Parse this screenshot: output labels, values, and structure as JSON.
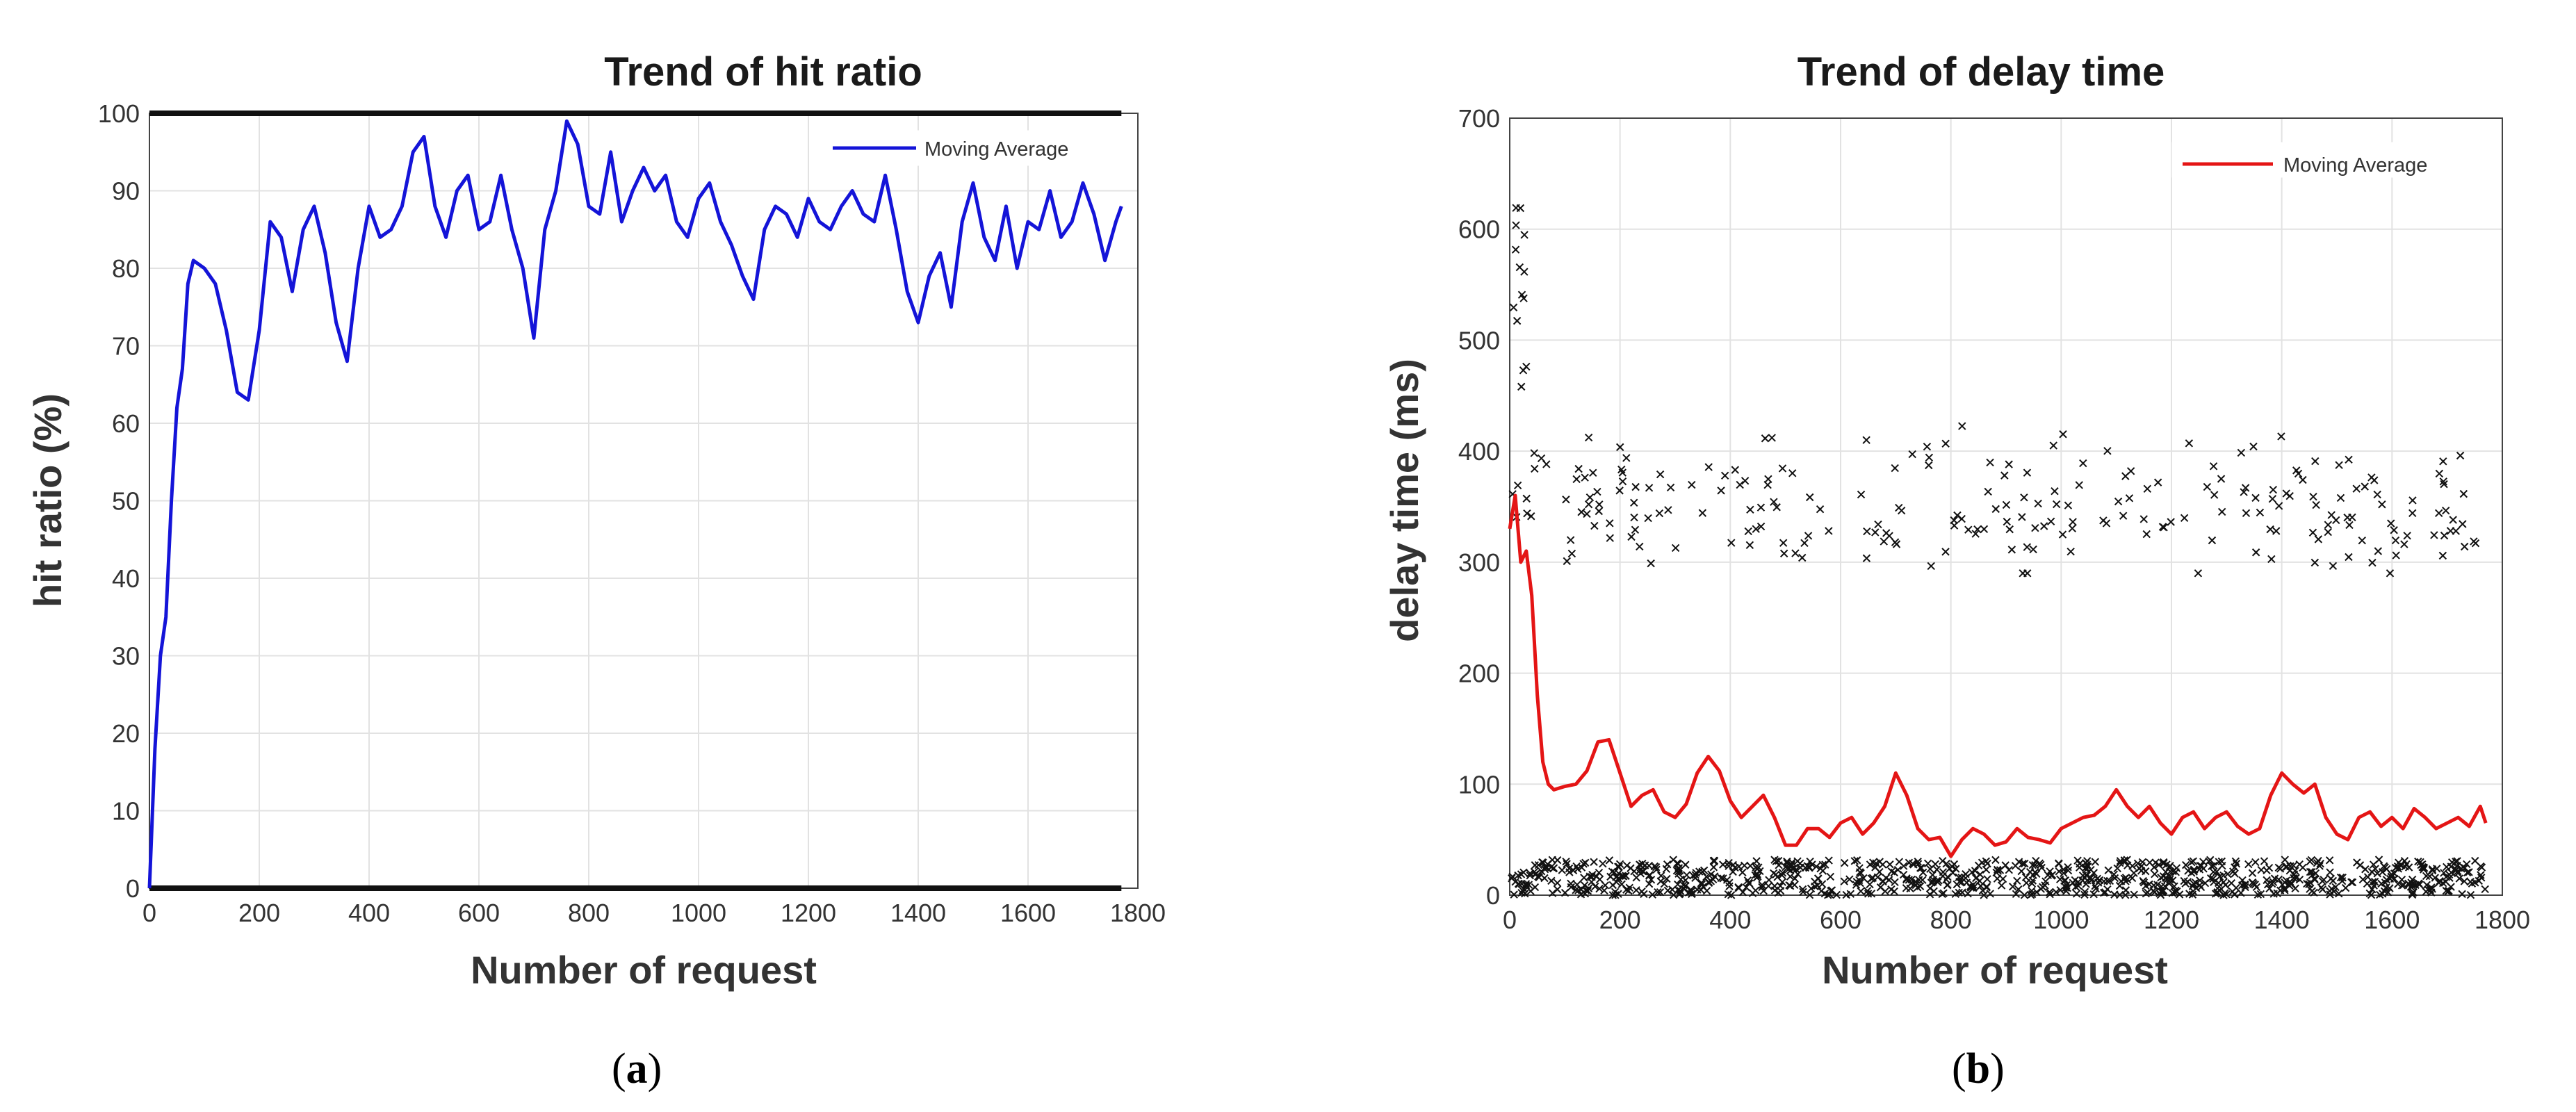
{
  "figure": {
    "caption_a": "(a)",
    "caption_b": "(b)",
    "caption_a_letter": "a",
    "caption_b_letter": "b"
  },
  "chart_data": [
    {
      "type": "line",
      "title": "Trend of hit ratio",
      "xlabel": "Number of request",
      "ylabel": "hit ratio (%)",
      "xlim": [
        0,
        1800
      ],
      "ylim": [
        0,
        100
      ],
      "xticks": [
        0,
        200,
        400,
        600,
        800,
        1000,
        1200,
        1400,
        1600,
        1800
      ],
      "yticks": [
        0,
        10,
        20,
        30,
        40,
        50,
        60,
        70,
        80,
        90,
        100
      ],
      "grid": true,
      "legend": {
        "label": "Moving Average",
        "position": "top-right"
      },
      "series": [
        {
          "name": "Moving Average",
          "color": "#1414d8",
          "x": [
            0,
            10,
            20,
            30,
            40,
            50,
            60,
            70,
            80,
            100,
            120,
            140,
            160,
            180,
            200,
            220,
            240,
            260,
            280,
            300,
            320,
            340,
            360,
            380,
            400,
            420,
            440,
            460,
            480,
            500,
            520,
            540,
            560,
            580,
            600,
            620,
            640,
            660,
            680,
            700,
            720,
            740,
            760,
            780,
            800,
            820,
            840,
            860,
            880,
            900,
            920,
            940,
            960,
            980,
            1000,
            1020,
            1040,
            1060,
            1080,
            1100,
            1120,
            1140,
            1160,
            1180,
            1200,
            1220,
            1240,
            1260,
            1280,
            1300,
            1320,
            1340,
            1360,
            1380,
            1400,
            1420,
            1440,
            1460,
            1480,
            1500,
            1520,
            1540,
            1560,
            1580,
            1600,
            1620,
            1640,
            1660,
            1680,
            1700,
            1720,
            1740,
            1760,
            1770
          ],
          "values": [
            0,
            18,
            30,
            35,
            50,
            62,
            67,
            78,
            81,
            80,
            78,
            72,
            64,
            63,
            72,
            86,
            84,
            77,
            85,
            88,
            82,
            73,
            68,
            80,
            88,
            84,
            85,
            88,
            95,
            97,
            88,
            84,
            90,
            92,
            85,
            86,
            92,
            85,
            80,
            71,
            85,
            90,
            99,
            96,
            88,
            87,
            95,
            86,
            90,
            93,
            90,
            92,
            86,
            84,
            89,
            91,
            86,
            83,
            79,
            76,
            85,
            88,
            87,
            84,
            89,
            86,
            85,
            88,
            90,
            87,
            86,
            92,
            85,
            77,
            73,
            79,
            82,
            75,
            86,
            91,
            84,
            81,
            88,
            80,
            86,
            85,
            90,
            84,
            86,
            91,
            87,
            81,
            86,
            88
          ]
        }
      ],
      "markers": {
        "description": "individual hit/miss samples plotted along the bottom and top edges",
        "color": "#111111",
        "values_at": [
          0,
          100
        ]
      }
    },
    {
      "type": "scatter",
      "title": "Trend of delay time",
      "xlabel": "Number of request",
      "ylabel": "delay time (ms)",
      "xlim": [
        0,
        1800
      ],
      "ylim": [
        0,
        700
      ],
      "xticks": [
        0,
        200,
        400,
        600,
        800,
        1000,
        1200,
        1400,
        1600,
        1800
      ],
      "yticks": [
        0,
        100,
        200,
        300,
        400,
        500,
        600,
        700
      ],
      "grid": true,
      "legend": {
        "label": "Moving Average",
        "position": "top-right"
      },
      "series": [
        {
          "name": "Moving Average",
          "type": "line",
          "color": "#e41515",
          "x": [
            0,
            10,
            20,
            30,
            40,
            50,
            60,
            70,
            80,
            100,
            120,
            140,
            160,
            180,
            200,
            220,
            240,
            260,
            280,
            300,
            320,
            340,
            360,
            380,
            400,
            420,
            440,
            460,
            480,
            500,
            520,
            540,
            560,
            580,
            600,
            620,
            640,
            660,
            680,
            700,
            720,
            740,
            760,
            780,
            800,
            820,
            840,
            860,
            880,
            900,
            920,
            940,
            960,
            980,
            1000,
            1020,
            1040,
            1060,
            1080,
            1100,
            1120,
            1140,
            1160,
            1180,
            1200,
            1220,
            1240,
            1260,
            1280,
            1300,
            1320,
            1340,
            1360,
            1380,
            1400,
            1420,
            1440,
            1460,
            1480,
            1500,
            1520,
            1540,
            1560,
            1580,
            1600,
            1620,
            1640,
            1660,
            1680,
            1700,
            1720,
            1740,
            1760,
            1770
          ],
          "values": [
            330,
            360,
            300,
            310,
            270,
            180,
            120,
            100,
            95,
            98,
            100,
            112,
            138,
            140,
            110,
            80,
            90,
            95,
            75,
            70,
            82,
            110,
            125,
            112,
            85,
            70,
            80,
            90,
            70,
            45,
            45,
            60,
            60,
            52,
            65,
            70,
            55,
            65,
            80,
            110,
            90,
            60,
            50,
            52,
            35,
            50,
            60,
            55,
            45,
            48,
            60,
            52,
            50,
            47,
            60,
            65,
            70,
            72,
            80,
            95,
            80,
            70,
            80,
            65,
            55,
            70,
            75,
            60,
            70,
            75,
            62,
            55,
            60,
            90,
            110,
            100,
            92,
            100,
            70,
            55,
            50,
            70,
            75,
            62,
            70,
            60,
            78,
            70,
            60,
            65,
            70,
            62,
            80,
            65
          ]
        },
        {
          "name": "samples",
          "type": "scatter",
          "color": "#111111",
          "description": "individual request delays: cache hits near 0-30 ms, misses around 300-450 ms, early outliers up to ~620 ms",
          "clusters": [
            {
              "label": "hits",
              "y_range": [
                0,
                32
              ],
              "x_range": [
                0,
                1770
              ]
            },
            {
              "label": "misses",
              "y_range": [
                290,
                450
              ],
              "x_range": [
                0,
                1770
              ]
            },
            {
              "label": "early outliers",
              "y_range": [
                450,
                625
              ],
              "x_range": [
                5,
                30
              ]
            }
          ]
        }
      ]
    }
  ]
}
